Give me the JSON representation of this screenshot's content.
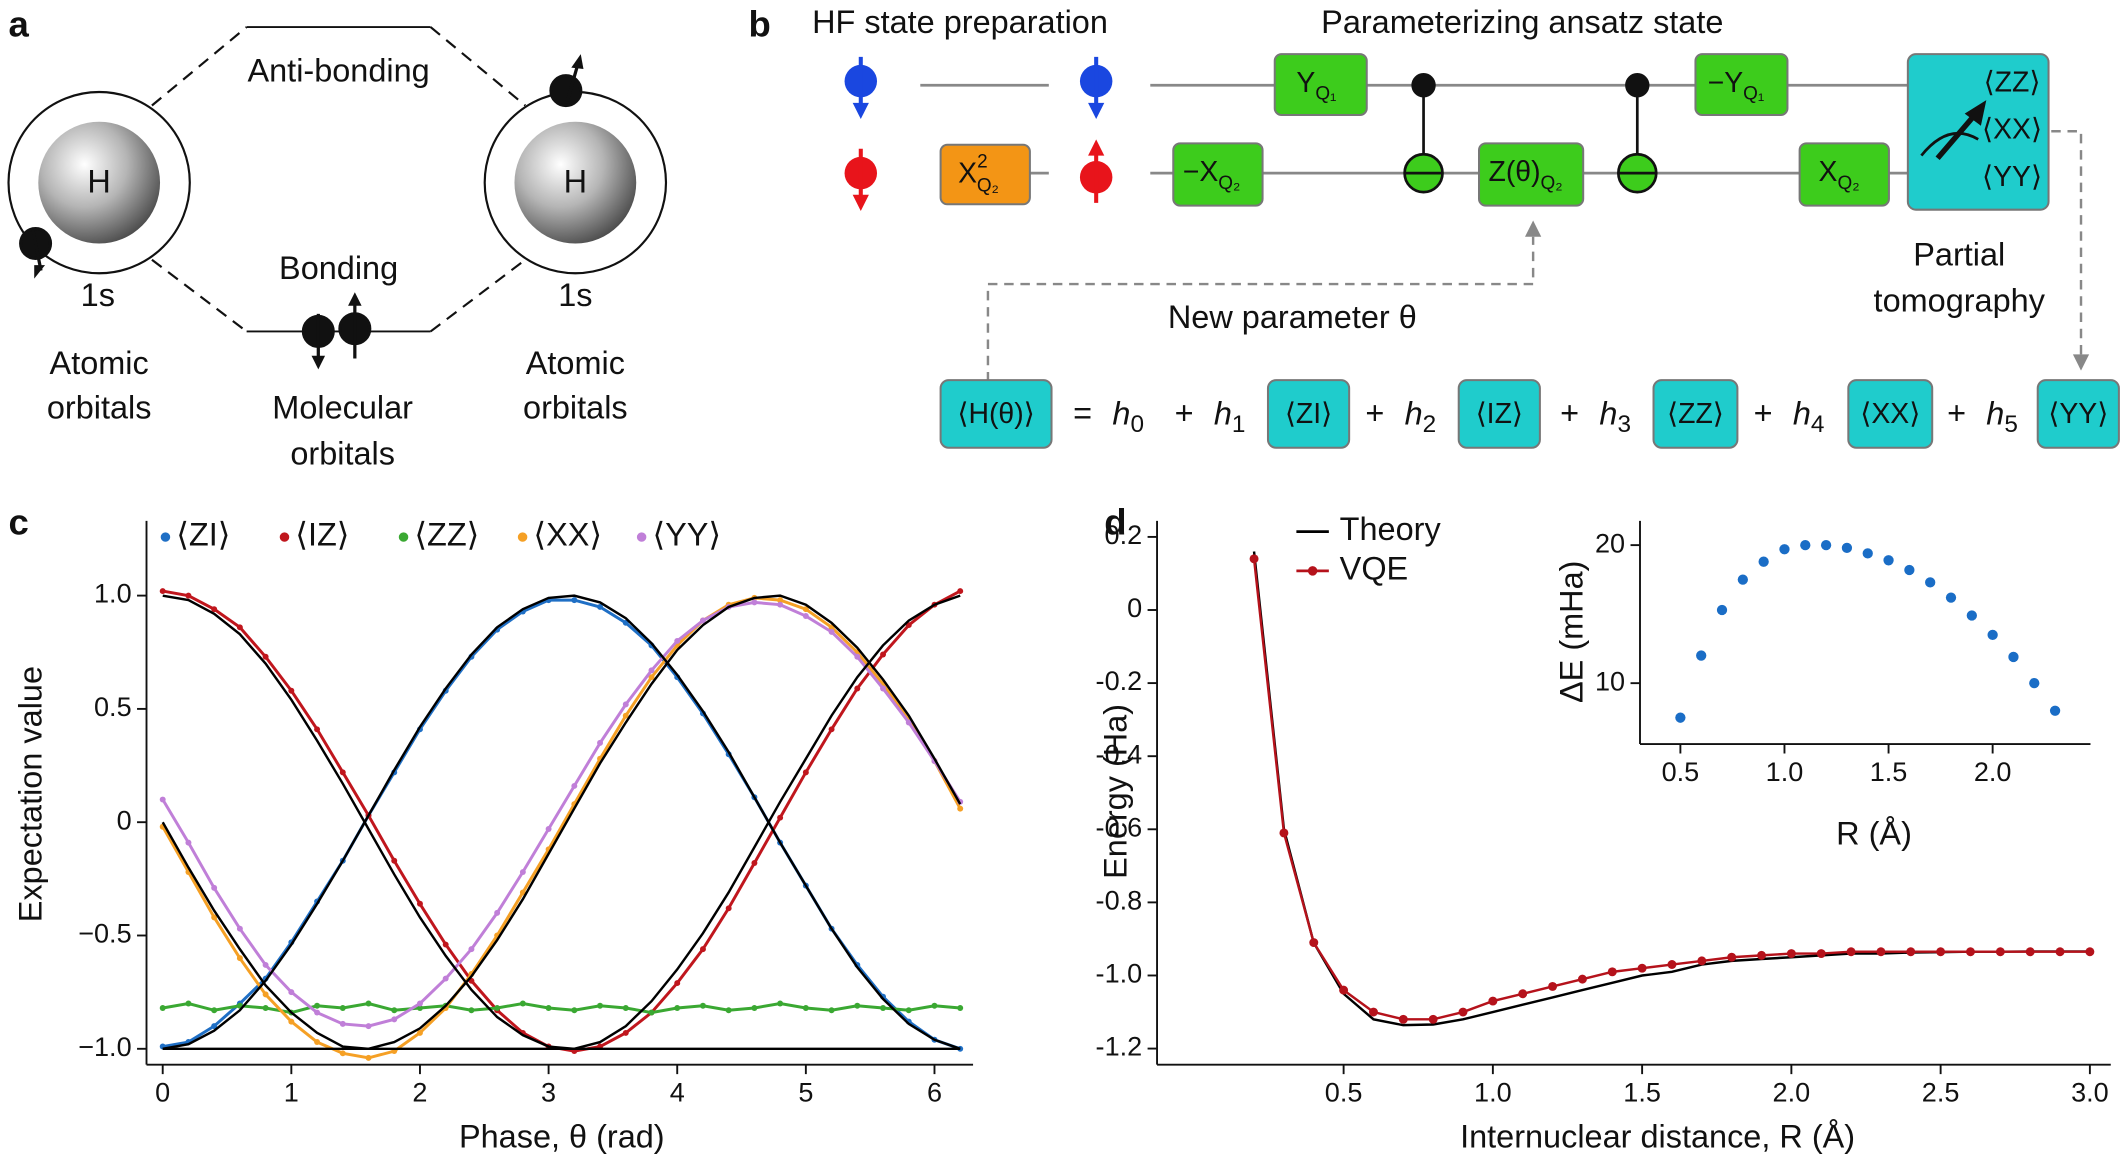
{
  "panel_a": {
    "label": "a",
    "anti_bonding": "Anti-bonding",
    "bonding": "Bonding",
    "atom_left": "H",
    "atom_right": "H",
    "orbital_left": "1s",
    "orbital_right": "1s",
    "atomic_left": [
      "Atomic",
      "orbitals"
    ],
    "atomic_right": [
      "Atomic",
      "orbitals"
    ],
    "molecular": [
      "Molecular",
      "orbitals"
    ]
  },
  "panel_b": {
    "label": "b",
    "hf_title": "HF state preparation",
    "ansatz_title": "Parameterizing ansatz state",
    "gates": [
      {
        "base": "X",
        "sup": "2",
        "sub": "Q₂"
      },
      {
        "base": "Y",
        "sub": "Q₁"
      },
      {
        "base": "−X",
        "sub": "Q₂"
      },
      {
        "base": "Z(θ)",
        "sub": "Q₂"
      },
      {
        "base": "−Y",
        "sub": "Q₁"
      },
      {
        "base": "X",
        "sub": "Q₂"
      }
    ],
    "measure": [
      "⟨ZZ⟩",
      "⟨XX⟩",
      "⟨YY⟩"
    ],
    "tomography": [
      "Partial",
      "tomography"
    ],
    "feedback": "New parameter θ",
    "equation": {
      "lhs": "⟨H(θ)⟩",
      "equals": "=",
      "plus": "+",
      "terms": [
        {
          "coef": "h",
          "sub": "0"
        },
        {
          "coef": "h",
          "sub": "1",
          "op": "⟨ZI⟩"
        },
        {
          "coef": "h",
          "sub": "2",
          "op": "⟨IZ⟩"
        },
        {
          "coef": "h",
          "sub": "3",
          "op": "⟨ZZ⟩"
        },
        {
          "coef": "h",
          "sub": "4",
          "op": "⟨XX⟩"
        },
        {
          "coef": "h",
          "sub": "5",
          "op": "⟨YY⟩"
        }
      ]
    }
  },
  "chart_data": [
    {
      "type": "line",
      "panel": "c",
      "x_label": "Phase, θ (rad)",
      "y_label": "Expectation value",
      "x": [
        0,
        0.2,
        0.4,
        0.6,
        0.8,
        1.0,
        1.2,
        1.4,
        1.6,
        1.8,
        2.0,
        2.2,
        2.4,
        2.6,
        2.8,
        3.0,
        3.2,
        3.4,
        3.6,
        3.8,
        4.0,
        4.2,
        4.4,
        4.6,
        4.8,
        5.0,
        5.2,
        5.4,
        5.6,
        5.8,
        6.0,
        6.2
      ],
      "xlim": [
        -0.126,
        6.3
      ],
      "ylim": [
        -1.07,
        1.33
      ],
      "xticks": [
        0,
        1,
        2,
        3,
        4,
        5,
        6
      ],
      "yticks": [
        {
          "value": -1,
          "label": "−1.0"
        },
        {
          "value": -0.5,
          "label": "−0.5"
        },
        0,
        0.5,
        {
          "value": 1,
          "label": "1.0"
        }
      ],
      "series": [
        {
          "name": "⟨ZI⟩",
          "color": "#1f6fc5",
          "kind": "points",
          "values": [
            -0.99,
            -0.97,
            -0.9,
            -0.8,
            -0.69,
            -0.53,
            -0.35,
            -0.17,
            0.03,
            0.22,
            0.41,
            0.58,
            0.73,
            0.85,
            0.93,
            0.98,
            0.98,
            0.95,
            0.88,
            0.78,
            0.64,
            0.48,
            0.3,
            0.11,
            -0.09,
            -0.28,
            -0.47,
            -0.63,
            -0.77,
            -0.88,
            -0.96,
            -1.0
          ]
        },
        {
          "name": "⟨IZ⟩",
          "color": "#c0161d",
          "kind": "points",
          "values": [
            1.02,
            1.0,
            0.94,
            0.86,
            0.73,
            0.58,
            0.41,
            0.22,
            0.03,
            -0.17,
            -0.36,
            -0.54,
            -0.7,
            -0.83,
            -0.93,
            -0.99,
            -1.01,
            -0.99,
            -0.93,
            -0.84,
            -0.71,
            -0.56,
            -0.38,
            -0.18,
            0.02,
            0.22,
            0.41,
            0.59,
            0.74,
            0.87,
            0.96,
            1.02
          ]
        },
        {
          "name": "⟨ZZ⟩",
          "color": "#3aa832",
          "kind": "points",
          "values": [
            -0.82,
            -0.8,
            -0.83,
            -0.81,
            -0.82,
            -0.84,
            -0.81,
            -0.82,
            -0.8,
            -0.83,
            -0.82,
            -0.81,
            -0.83,
            -0.82,
            -0.8,
            -0.82,
            -0.83,
            -0.81,
            -0.82,
            -0.84,
            -0.82,
            -0.81,
            -0.83,
            -0.82,
            -0.8,
            -0.82,
            -0.83,
            -0.81,
            -0.82,
            -0.83,
            -0.81,
            -0.82
          ]
        },
        {
          "name": "⟨XX⟩",
          "color": "#f5a025",
          "kind": "points",
          "values": [
            -0.02,
            -0.22,
            -0.42,
            -0.6,
            -0.76,
            -0.88,
            -0.97,
            -1.02,
            -1.04,
            -1.01,
            -0.93,
            -0.82,
            -0.67,
            -0.5,
            -0.31,
            -0.12,
            0.08,
            0.28,
            0.47,
            0.64,
            0.78,
            0.89,
            0.96,
            0.99,
            0.98,
            0.94,
            0.86,
            0.75,
            0.61,
            0.45,
            0.27,
            0.06
          ]
        },
        {
          "name": "⟨YY⟩",
          "color": "#c07fd8",
          "kind": "points",
          "values": [
            0.1,
            -0.09,
            -0.29,
            -0.47,
            -0.63,
            -0.75,
            -0.84,
            -0.89,
            -0.9,
            -0.87,
            -0.8,
            -0.69,
            -0.56,
            -0.4,
            -0.22,
            -0.03,
            0.16,
            0.35,
            0.52,
            0.67,
            0.8,
            0.89,
            0.95,
            0.97,
            0.96,
            0.91,
            0.84,
            0.73,
            0.59,
            0.44,
            0.27,
            0.09
          ]
        },
        {
          "color": "#000000",
          "kind": "line",
          "values": [
            -1,
            -0.98,
            -0.92,
            -0.83,
            -0.7,
            -0.54,
            -0.36,
            -0.17,
            0.03,
            0.23,
            0.42,
            0.59,
            0.74,
            0.86,
            0.94,
            0.99,
            1.0,
            0.97,
            0.9,
            0.79,
            0.65,
            0.49,
            0.31,
            0.11,
            -0.09,
            -0.28,
            -0.47,
            -0.64,
            -0.78,
            -0.89,
            -0.96,
            -1.0
          ]
        },
        {
          "color": "#000000",
          "kind": "line",
          "values": [
            1,
            0.98,
            0.92,
            0.83,
            0.7,
            0.54,
            0.36,
            0.17,
            -0.03,
            -0.23,
            -0.42,
            -0.59,
            -0.74,
            -0.86,
            -0.94,
            -0.99,
            -1.0,
            -0.97,
            -0.9,
            -0.79,
            -0.65,
            -0.49,
            -0.31,
            -0.11,
            0.09,
            0.28,
            0.47,
            0.64,
            0.78,
            0.89,
            0.96,
            1.0
          ]
        },
        {
          "color": "#000000",
          "kind": "line",
          "values": [
            0,
            -0.2,
            -0.39,
            -0.56,
            -0.72,
            -0.84,
            -0.93,
            -0.99,
            -1.0,
            -0.97,
            -0.91,
            -0.81,
            -0.68,
            -0.52,
            -0.34,
            -0.14,
            0.06,
            0.26,
            0.44,
            0.61,
            0.76,
            0.87,
            0.95,
            0.99,
            1.0,
            0.96,
            0.88,
            0.77,
            0.63,
            0.47,
            0.28,
            0.08
          ]
        },
        {
          "color": "#000000",
          "kind": "line",
          "values": [
            -1,
            -1,
            -1,
            -1,
            -1,
            -1,
            -1,
            -1,
            -1,
            -1,
            -1,
            -1,
            -1,
            -1,
            -1,
            -1,
            -1,
            -1,
            -1,
            -1,
            -1,
            -1,
            -1,
            -1,
            -1,
            -1,
            -1,
            -1,
            -1,
            -1,
            -1,
            -1
          ]
        }
      ]
    },
    {
      "type": "line",
      "panel": "d",
      "x_label": "Internuclear distance, R (Å)",
      "y_label": "Energy (Ha)",
      "x": [
        0.2,
        0.3,
        0.4,
        0.5,
        0.6,
        0.7,
        0.8,
        0.9,
        1.0,
        1.1,
        1.2,
        1.3,
        1.4,
        1.5,
        1.6,
        1.7,
        1.8,
        1.9,
        2.0,
        2.1,
        2.2,
        2.3,
        2.4,
        2.5,
        2.6,
        2.7,
        2.8,
        2.9,
        3.0
      ],
      "xlim": [
        -0.125,
        3.07
      ],
      "ylim": [
        -1.244,
        0.244
      ],
      "xticks": [
        0.5,
        {
          "value": 1,
          "label": "1.0"
        },
        1.5,
        {
          "value": 2,
          "label": "2.0"
        },
        2.5,
        {
          "value": 3,
          "label": "3.0"
        }
      ],
      "yticks": [
        {
          "value": -1.2,
          "label": "-1.2"
        },
        {
          "value": -1,
          "label": "-1.0"
        },
        {
          "value": -0.8,
          "label": "-0.8"
        },
        {
          "value": -0.6,
          "label": "-0.6"
        },
        {
          "value": -0.4,
          "label": "-0.4"
        },
        {
          "value": -0.2,
          "label": "-0.2"
        },
        0,
        0.2
      ],
      "series": [
        {
          "name": "Theory",
          "color": "#000000",
          "kind": "line",
          "values": [
            0.16,
            -0.6,
            -0.91,
            -1.05,
            -1.12,
            -1.136,
            -1.134,
            -1.12,
            -1.1,
            -1.08,
            -1.06,
            -1.04,
            -1.02,
            -1.0,
            -0.99,
            -0.97,
            -0.96,
            -0.955,
            -0.95,
            -0.945,
            -0.94,
            -0.94,
            -0.937,
            -0.936,
            -0.935,
            -0.935,
            -0.934,
            -0.934,
            -0.934
          ]
        },
        {
          "name": "VQE",
          "color": "#b5121b",
          "kind": "line-points",
          "values": [
            0.14,
            -0.61,
            -0.91,
            -1.04,
            -1.1,
            -1.12,
            -1.12,
            -1.1,
            -1.07,
            -1.05,
            -1.03,
            -1.01,
            -0.99,
            -0.98,
            -0.97,
            -0.96,
            -0.95,
            -0.945,
            -0.94,
            -0.94,
            -0.935,
            -0.935,
            -0.935,
            -0.935,
            -0.935,
            -0.935,
            -0.935,
            -0.935,
            -0.935
          ]
        }
      ]
    },
    {
      "type": "scatter",
      "x_label": "R (Å)",
      "y_label": "ΔE (mHa)",
      "color": "#1a6dc6",
      "x": [
        0.5,
        0.6,
        0.7,
        0.8,
        0.9,
        1.0,
        1.1,
        1.2,
        1.3,
        1.4,
        1.5,
        1.6,
        1.7,
        1.8,
        1.9,
        2.0,
        2.1,
        2.2,
        2.3
      ],
      "values": [
        7.5,
        12,
        15.3,
        17.5,
        18.8,
        19.7,
        20,
        20,
        19.8,
        19.4,
        18.9,
        18.2,
        17.3,
        16.2,
        14.9,
        13.5,
        11.9,
        10,
        8
      ],
      "xlim": [
        0.306,
        2.47
      ],
      "ylim": [
        5.59,
        21.76
      ],
      "xticks": [
        0.5,
        {
          "value": 1,
          "label": "1.0"
        },
        1.5,
        {
          "value": 2,
          "label": "2.0"
        }
      ],
      "yticks": [
        10,
        20
      ]
    }
  ]
}
